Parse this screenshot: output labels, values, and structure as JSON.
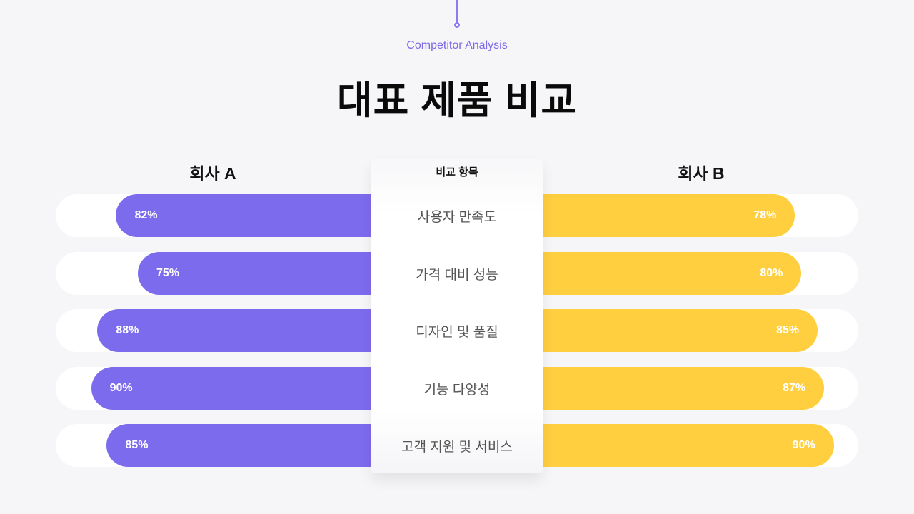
{
  "header": {
    "subtitle": "Competitor Analysis",
    "title": "대표 제품 비교"
  },
  "columns": {
    "company_a": "회사 A",
    "category": "비교 항목",
    "company_b": "회사 B"
  },
  "colors": {
    "company_a": "#7d6bee",
    "company_b": "#ffcf40",
    "accent": "#7c6ae8",
    "background": "#f6f6f8"
  },
  "rows": [
    {
      "category": "사용자 만족도",
      "a": "82%",
      "b": "78%"
    },
    {
      "category": "가격 대비 성능",
      "a": "75%",
      "b": "80%"
    },
    {
      "category": "디자인 및 품질",
      "a": "88%",
      "b": "85%"
    },
    {
      "category": "기능 다양성",
      "a": "90%",
      "b": "87%"
    },
    {
      "category": "고객 지원 및 서비스",
      "a": "85%",
      "b": "90%"
    }
  ],
  "chart_data": {
    "type": "bar",
    "orientation": "horizontal-diverging",
    "title": "대표 제품 비교",
    "subtitle": "Competitor Analysis",
    "categories": [
      "사용자 만족도",
      "가격 대비 성능",
      "디자인 및 품질",
      "기능 다양성",
      "고객 지원 및 서비스"
    ],
    "series": [
      {
        "name": "회사 A",
        "values": [
          82,
          75,
          88,
          90,
          85
        ],
        "color": "#7d6bee"
      },
      {
        "name": "회사 B",
        "values": [
          78,
          80,
          85,
          87,
          90
        ],
        "color": "#ffcf40"
      }
    ],
    "xlabel": "",
    "ylabel": "비교 항목",
    "xlim": [
      0,
      100
    ],
    "grid": false,
    "legend": "column headers (top)"
  }
}
